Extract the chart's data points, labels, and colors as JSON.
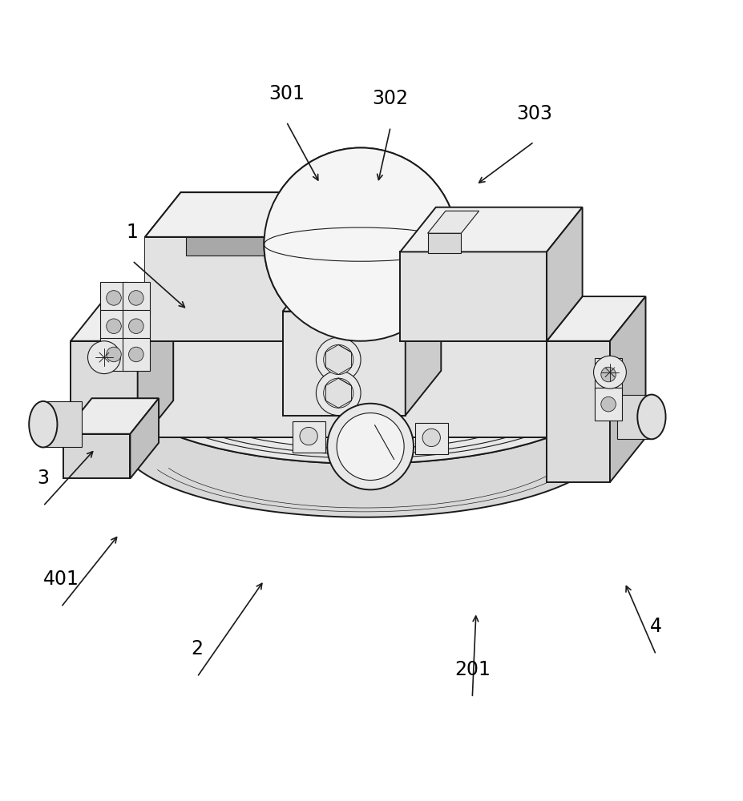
{
  "bg_color": "#ffffff",
  "line_color": "#1a1a1a",
  "label_color": "#000000",
  "fig_width": 9.28,
  "fig_height": 10.0,
  "lw": 1.4,
  "lw_thin": 0.8,
  "face_light": "#f5f5f5",
  "face_mid": "#e0e0e0",
  "face_dark": "#c8c8c8",
  "face_top": "#eeeeee",
  "label_cfg": {
    "2": {
      "lpos": [
        0.265,
        0.128
      ],
      "apos": [
        0.355,
        0.258
      ]
    },
    "201": {
      "lpos": [
        0.635,
        0.1
      ],
      "apos": [
        0.64,
        0.215
      ]
    },
    "4": {
      "lpos": [
        0.882,
        0.158
      ],
      "apos": [
        0.84,
        0.255
      ]
    },
    "401": {
      "lpos": [
        0.082,
        0.222
      ],
      "apos": [
        0.16,
        0.32
      ]
    },
    "3": {
      "lpos": [
        0.058,
        0.358
      ],
      "apos": [
        0.128,
        0.435
      ]
    },
    "1": {
      "lpos": [
        0.178,
        0.688
      ],
      "apos": [
        0.252,
        0.622
      ]
    },
    "301": {
      "lpos": [
        0.385,
        0.875
      ],
      "apos": [
        0.43,
        0.792
      ]
    },
    "302": {
      "lpos": [
        0.525,
        0.868
      ],
      "apos": [
        0.508,
        0.792
      ]
    },
    "303": {
      "lpos": [
        0.718,
        0.848
      ],
      "apos": [
        0.64,
        0.79
      ]
    }
  }
}
